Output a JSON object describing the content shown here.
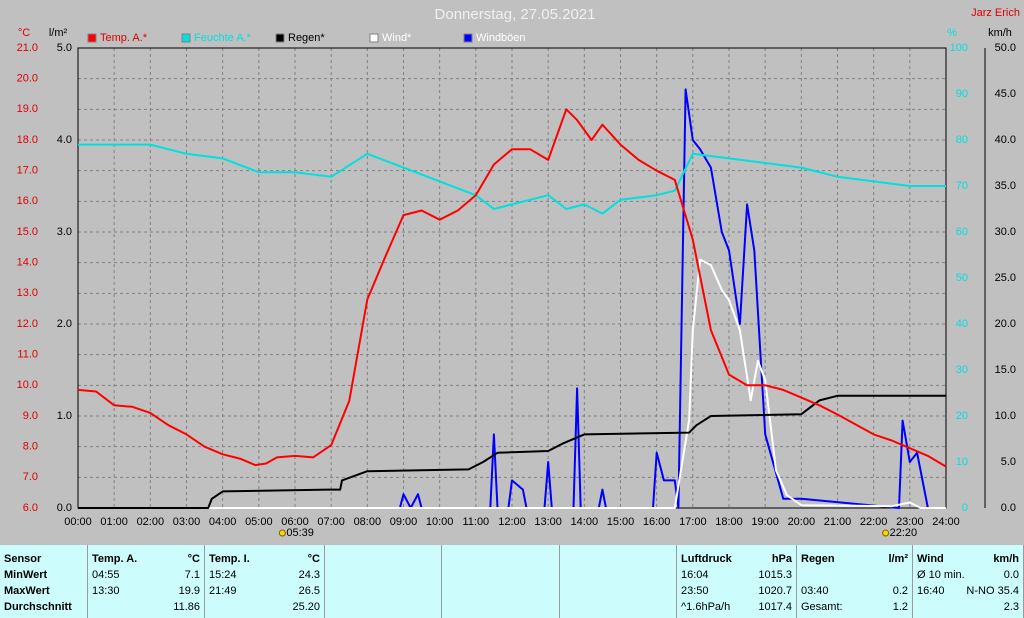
{
  "chart_data": {
    "type": "line",
    "title": "Donnerstag, 27.05.2021",
    "author": "Jarz Erich",
    "y_unit": "°C",
    "y2_unit": "l/m²",
    "y3_unit": "%",
    "y4_unit": "km/h",
    "xlim": [
      0,
      24
    ],
    "xticks": [
      {
        "value": 0,
        "label": "00:00"
      },
      {
        "value": 1,
        "label": "01:00"
      },
      {
        "value": 2,
        "label": "02:00"
      },
      {
        "value": 3,
        "label": "03:00"
      },
      {
        "value": 4,
        "label": "04:00"
      },
      {
        "value": 5,
        "label": "05:00"
      },
      {
        "value": 6,
        "label": "06:00"
      },
      {
        "value": 7,
        "label": "07:00"
      },
      {
        "value": 8,
        "label": "08:00"
      },
      {
        "value": 9,
        "label": "09:00"
      },
      {
        "value": 10,
        "label": "10:00"
      },
      {
        "value": 11,
        "label": "11:00"
      },
      {
        "value": 12,
        "label": "12:00"
      },
      {
        "value": 13,
        "label": "13:00"
      },
      {
        "value": 14,
        "label": "14:00"
      },
      {
        "value": 15,
        "label": "15:00"
      },
      {
        "value": 16,
        "label": "16:00"
      },
      {
        "value": 17,
        "label": "17:00"
      },
      {
        "value": 18,
        "label": "18:00"
      },
      {
        "value": 19,
        "label": "19:00"
      },
      {
        "value": 20,
        "label": "20:00"
      },
      {
        "value": 21,
        "label": "21:00"
      },
      {
        "value": 22,
        "label": "22:00"
      },
      {
        "value": 23,
        "label": "23:00"
      },
      {
        "value": 24,
        "label": "24:00"
      }
    ],
    "ylim": [
      6,
      21
    ],
    "yticks": [
      {
        "value": 6,
        "label": "6.0"
      },
      {
        "value": 7,
        "label": "7.0"
      },
      {
        "value": 8,
        "label": "8.0"
      },
      {
        "value": 9,
        "label": "9.0"
      },
      {
        "value": 10,
        "label": "10.0"
      },
      {
        "value": 11,
        "label": "11.0"
      },
      {
        "value": 12,
        "label": "12.0"
      },
      {
        "value": 13,
        "label": "13.0"
      },
      {
        "value": 14,
        "label": "14.0"
      },
      {
        "value": 15,
        "label": "15.0"
      },
      {
        "value": 16,
        "label": "16.0"
      },
      {
        "value": 17,
        "label": "17.0"
      },
      {
        "value": 18,
        "label": "18.0"
      },
      {
        "value": 19,
        "label": "19.0"
      },
      {
        "value": 20,
        "label": "20.0"
      },
      {
        "value": 21,
        "label": "21.0"
      }
    ],
    "y2lim": [
      0,
      5
    ],
    "y2ticks": [
      {
        "value": 0,
        "label": "0.0"
      },
      {
        "value": 1,
        "label": "1.0"
      },
      {
        "value": 2,
        "label": "2.0"
      },
      {
        "value": 3,
        "label": "3.0"
      },
      {
        "value": 4,
        "label": "4.0"
      },
      {
        "value": 5,
        "label": "5.0"
      }
    ],
    "y3lim": [
      0,
      100
    ],
    "y3ticks": [
      0,
      10,
      20,
      30,
      40,
      50,
      60,
      70,
      80,
      90,
      100
    ],
    "y4lim": [
      0,
      50
    ],
    "y4ticks": [
      {
        "value": 0,
        "label": "0.0"
      },
      {
        "value": 5,
        "label": "5.0"
      },
      {
        "value": 10,
        "label": "10.0"
      },
      {
        "value": 15,
        "label": "15.0"
      },
      {
        "value": 20,
        "label": "20.0"
      },
      {
        "value": 25,
        "label": "25.0"
      },
      {
        "value": 30,
        "label": "30.0"
      },
      {
        "value": 35,
        "label": "35.0"
      },
      {
        "value": 40,
        "label": "40.0"
      },
      {
        "value": 45,
        "label": "45.0"
      },
      {
        "value": 50,
        "label": "50.0"
      }
    ],
    "grid": true,
    "sunrise": {
      "value": 5.65,
      "label": "05:39"
    },
    "sunset": {
      "value": 22.33,
      "label": "22:20"
    },
    "series": [
      {
        "name": "Temp. A.*",
        "color": "#ff0000",
        "axis": "y",
        "x": [
          0,
          0.5,
          1,
          1.5,
          2,
          2.5,
          3,
          3.5,
          4,
          4.5,
          4.9,
          5.2,
          5.5,
          6,
          6.5,
          7,
          7.5,
          8,
          8.5,
          9,
          9.5,
          10,
          10.5,
          11,
          11.5,
          12,
          12.5,
          13,
          13.5,
          13.8,
          14.2,
          14.5,
          15,
          15.5,
          16,
          16.5,
          17,
          17.5,
          18,
          18.5,
          19,
          19.5,
          20,
          20.5,
          21,
          22,
          22.5,
          23,
          23.5,
          24
        ],
        "values": [
          9.85,
          9.8,
          9.35,
          9.3,
          9.1,
          8.7,
          8.4,
          8.0,
          7.75,
          7.6,
          7.4,
          7.45,
          7.65,
          7.7,
          7.65,
          8.05,
          9.5,
          12.8,
          14.2,
          15.55,
          15.7,
          15.4,
          15.7,
          16.2,
          17.2,
          17.7,
          17.7,
          17.35,
          19.0,
          18.65,
          18.0,
          18.5,
          17.85,
          17.35,
          17.0,
          16.7,
          14.75,
          11.8,
          10.35,
          10.0,
          10.0,
          9.85,
          9.6,
          9.35,
          9.05,
          8.4,
          8.2,
          7.95,
          7.7,
          7.35
        ]
      },
      {
        "name": "Feuchte A.*",
        "color": "#00e0e0",
        "axis": "y3",
        "x": [
          0,
          2,
          3,
          4,
          5,
          6,
          7,
          8,
          9,
          10,
          11,
          11.5,
          12,
          13,
          13.5,
          14,
          14.5,
          15,
          16,
          16.5,
          17,
          18,
          19,
          20,
          21,
          22,
          23,
          24
        ],
        "values": [
          79,
          79,
          77,
          76,
          73,
          73,
          72,
          77,
          74,
          71,
          68,
          65,
          66,
          68,
          65,
          66,
          64,
          67,
          68,
          69,
          77,
          76,
          75,
          74,
          72,
          71,
          70,
          70
        ]
      },
      {
        "name": "Regen*",
        "color": "#000000",
        "axis": "y2",
        "x": [
          0,
          3.6,
          3.7,
          4,
          6.9,
          7.25,
          7.3,
          8,
          10.8,
          11.2,
          11.6,
          13,
          13.4,
          14,
          16.9,
          17.1,
          17.5,
          20,
          20.5,
          21,
          24
        ],
        "values": [
          0,
          0,
          0.1,
          0.18,
          0.2,
          0.2,
          0.3,
          0.4,
          0.42,
          0.5,
          0.6,
          0.62,
          0.7,
          0.8,
          0.82,
          0.9,
          1.0,
          1.02,
          1.17,
          1.22,
          1.22
        ]
      },
      {
        "name": "Wind*",
        "color": "#ffffff",
        "axis": "y4",
        "x": [
          0,
          16.5,
          16.9,
          17.0,
          17.2,
          17.5,
          17.8,
          18,
          18.3,
          18.6,
          18.8,
          19,
          19.3,
          19.6,
          20,
          22.5,
          23,
          23.3,
          24
        ],
        "values": [
          0,
          0,
          9.6,
          19.3,
          27,
          26.4,
          23.7,
          22.6,
          19.3,
          11.7,
          16,
          13.9,
          4.1,
          1.4,
          0.3,
          0.2,
          0.6,
          0,
          0
        ]
      },
      {
        "name": "Windböen",
        "color": "#0000ff",
        "axis": "y4",
        "x": [
          0,
          8.9,
          9.0,
          9.2,
          9.4,
          9.5,
          11.4,
          11.5,
          11.6,
          11.9,
          12.0,
          12.3,
          12.4,
          12.9,
          13.0,
          13.1,
          13.7,
          13.8,
          13.9,
          14.4,
          14.5,
          14.6,
          15.9,
          16.0,
          16.2,
          16.5,
          16.6,
          16.8,
          17.0,
          17.2,
          17.5,
          17.8,
          18.0,
          18.3,
          18.5,
          18.7,
          19.0,
          19.5,
          20,
          22.7,
          22.8,
          23,
          23.2,
          23.5,
          24
        ],
        "values": [
          0,
          0,
          1.5,
          0,
          1.5,
          0,
          0,
          8,
          0,
          0,
          3,
          2,
          0,
          0,
          5,
          0,
          0,
          13,
          0,
          0,
          2,
          0,
          0,
          6,
          3,
          3,
          0,
          45.5,
          40,
          39,
          37,
          30,
          28,
          20,
          33,
          28,
          8,
          1,
          1,
          0,
          9.5,
          5,
          6,
          0,
          0
        ]
      }
    ]
  },
  "table": {
    "header": [
      {
        "l": "Sensor"
      },
      {
        "l": "Temp. A.",
        "r": "°C"
      },
      {
        "l": "Temp. I.",
        "r": "°C"
      },
      {},
      {},
      {},
      {
        "l": "Luftdruck",
        "r": "hPa"
      },
      {
        "l": "Regen",
        "r": "l/m²"
      },
      {
        "l": "Wind",
        "r": "km/h"
      }
    ],
    "rows": [
      [
        {
          "l": "MinWert"
        },
        {
          "l": "04:55",
          "r": "7.1"
        },
        {
          "l": "15:24",
          "r": "24.3"
        },
        {},
        {},
        {},
        {
          "l": "16:04",
          "r": "1015.3"
        },
        {},
        {
          "l": "Ø 10 min.",
          "r": "0.0"
        }
      ],
      [
        {
          "l": "MaxWert"
        },
        {
          "l": "13:30",
          "r": "19.9"
        },
        {
          "l": "21:49",
          "r": "26.5"
        },
        {},
        {},
        {},
        {
          "l": "23:50",
          "r": "1020.7"
        },
        {
          "l": "03:40",
          "r": "0.2"
        },
        {
          "l": "16:40",
          "r": "N-NO 35.4"
        }
      ],
      [
        {
          "l": "Durchschnitt"
        },
        {
          "r": "11.86"
        },
        {
          "r": "25.20"
        },
        {},
        {},
        {},
        {
          "l": "^1.6hPa/h",
          "r": "1017.4"
        },
        {
          "l": "Gesamt:",
          "r": "1.2"
        },
        {
          "r": "2.3"
        }
      ]
    ]
  }
}
